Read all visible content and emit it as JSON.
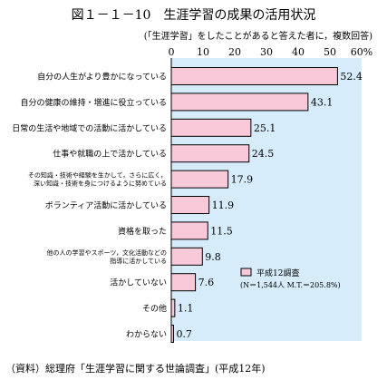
{
  "title": "図１－１－10　生涯学習の成果の活用状況",
  "subtitle": "(「生涯学習」をしたことがあると答えた者に，複数回答)",
  "source": "（資料）総理府「生涯学習に関する世論調査」(平成12年)",
  "colors": {
    "plot_bg": "#d6ecfb",
    "bar_fill": "#f7c9d9",
    "bar_stroke": "#000000"
  },
  "chart_data": {
    "type": "bar",
    "orientation": "horizontal",
    "categories": [
      [
        "自分の人生がより豊かになっている"
      ],
      [
        "自分の健康の維持・増進に役立っている"
      ],
      [
        "日常の生活や地域での活動に活かしている"
      ],
      [
        "仕事や就職の上で活かしている"
      ],
      [
        "その知識・技術や経験を生かして，さらに広く，",
        "深い知識・技術を身につけるように努めている"
      ],
      [
        "ボランティア活動に活かしている"
      ],
      [
        "資格を取った"
      ],
      [
        "他の人の学習やスポーツ，文化活動などの",
        "指導に活かしている"
      ],
      [
        "活かしていない"
      ],
      [
        "その他"
      ],
      [
        "わからない"
      ]
    ],
    "series": [
      {
        "name": "平成12調査",
        "values": [
          52.4,
          43.1,
          25.1,
          24.5,
          17.9,
          11.9,
          11.5,
          9.8,
          7.6,
          1.1,
          0.7
        ]
      }
    ],
    "value_labels": [
      "52.4",
      "43.1",
      "25.1",
      "24.5",
      "17.9",
      "11.9",
      "11.5",
      "9.8",
      "7.6",
      "1.1",
      "0.7"
    ],
    "x_ticks": [
      0,
      10,
      20,
      30,
      40,
      50,
      60
    ],
    "x_tick_labels": [
      "0",
      "10",
      "20",
      "30",
      "40",
      "50",
      "60%"
    ],
    "xlim": [
      0,
      60
    ],
    "legend": {
      "label": "平成12調査",
      "note": "(N＝1,544人 M.T.＝205.8%)",
      "position": "bottom-right"
    },
    "grid": false
  }
}
